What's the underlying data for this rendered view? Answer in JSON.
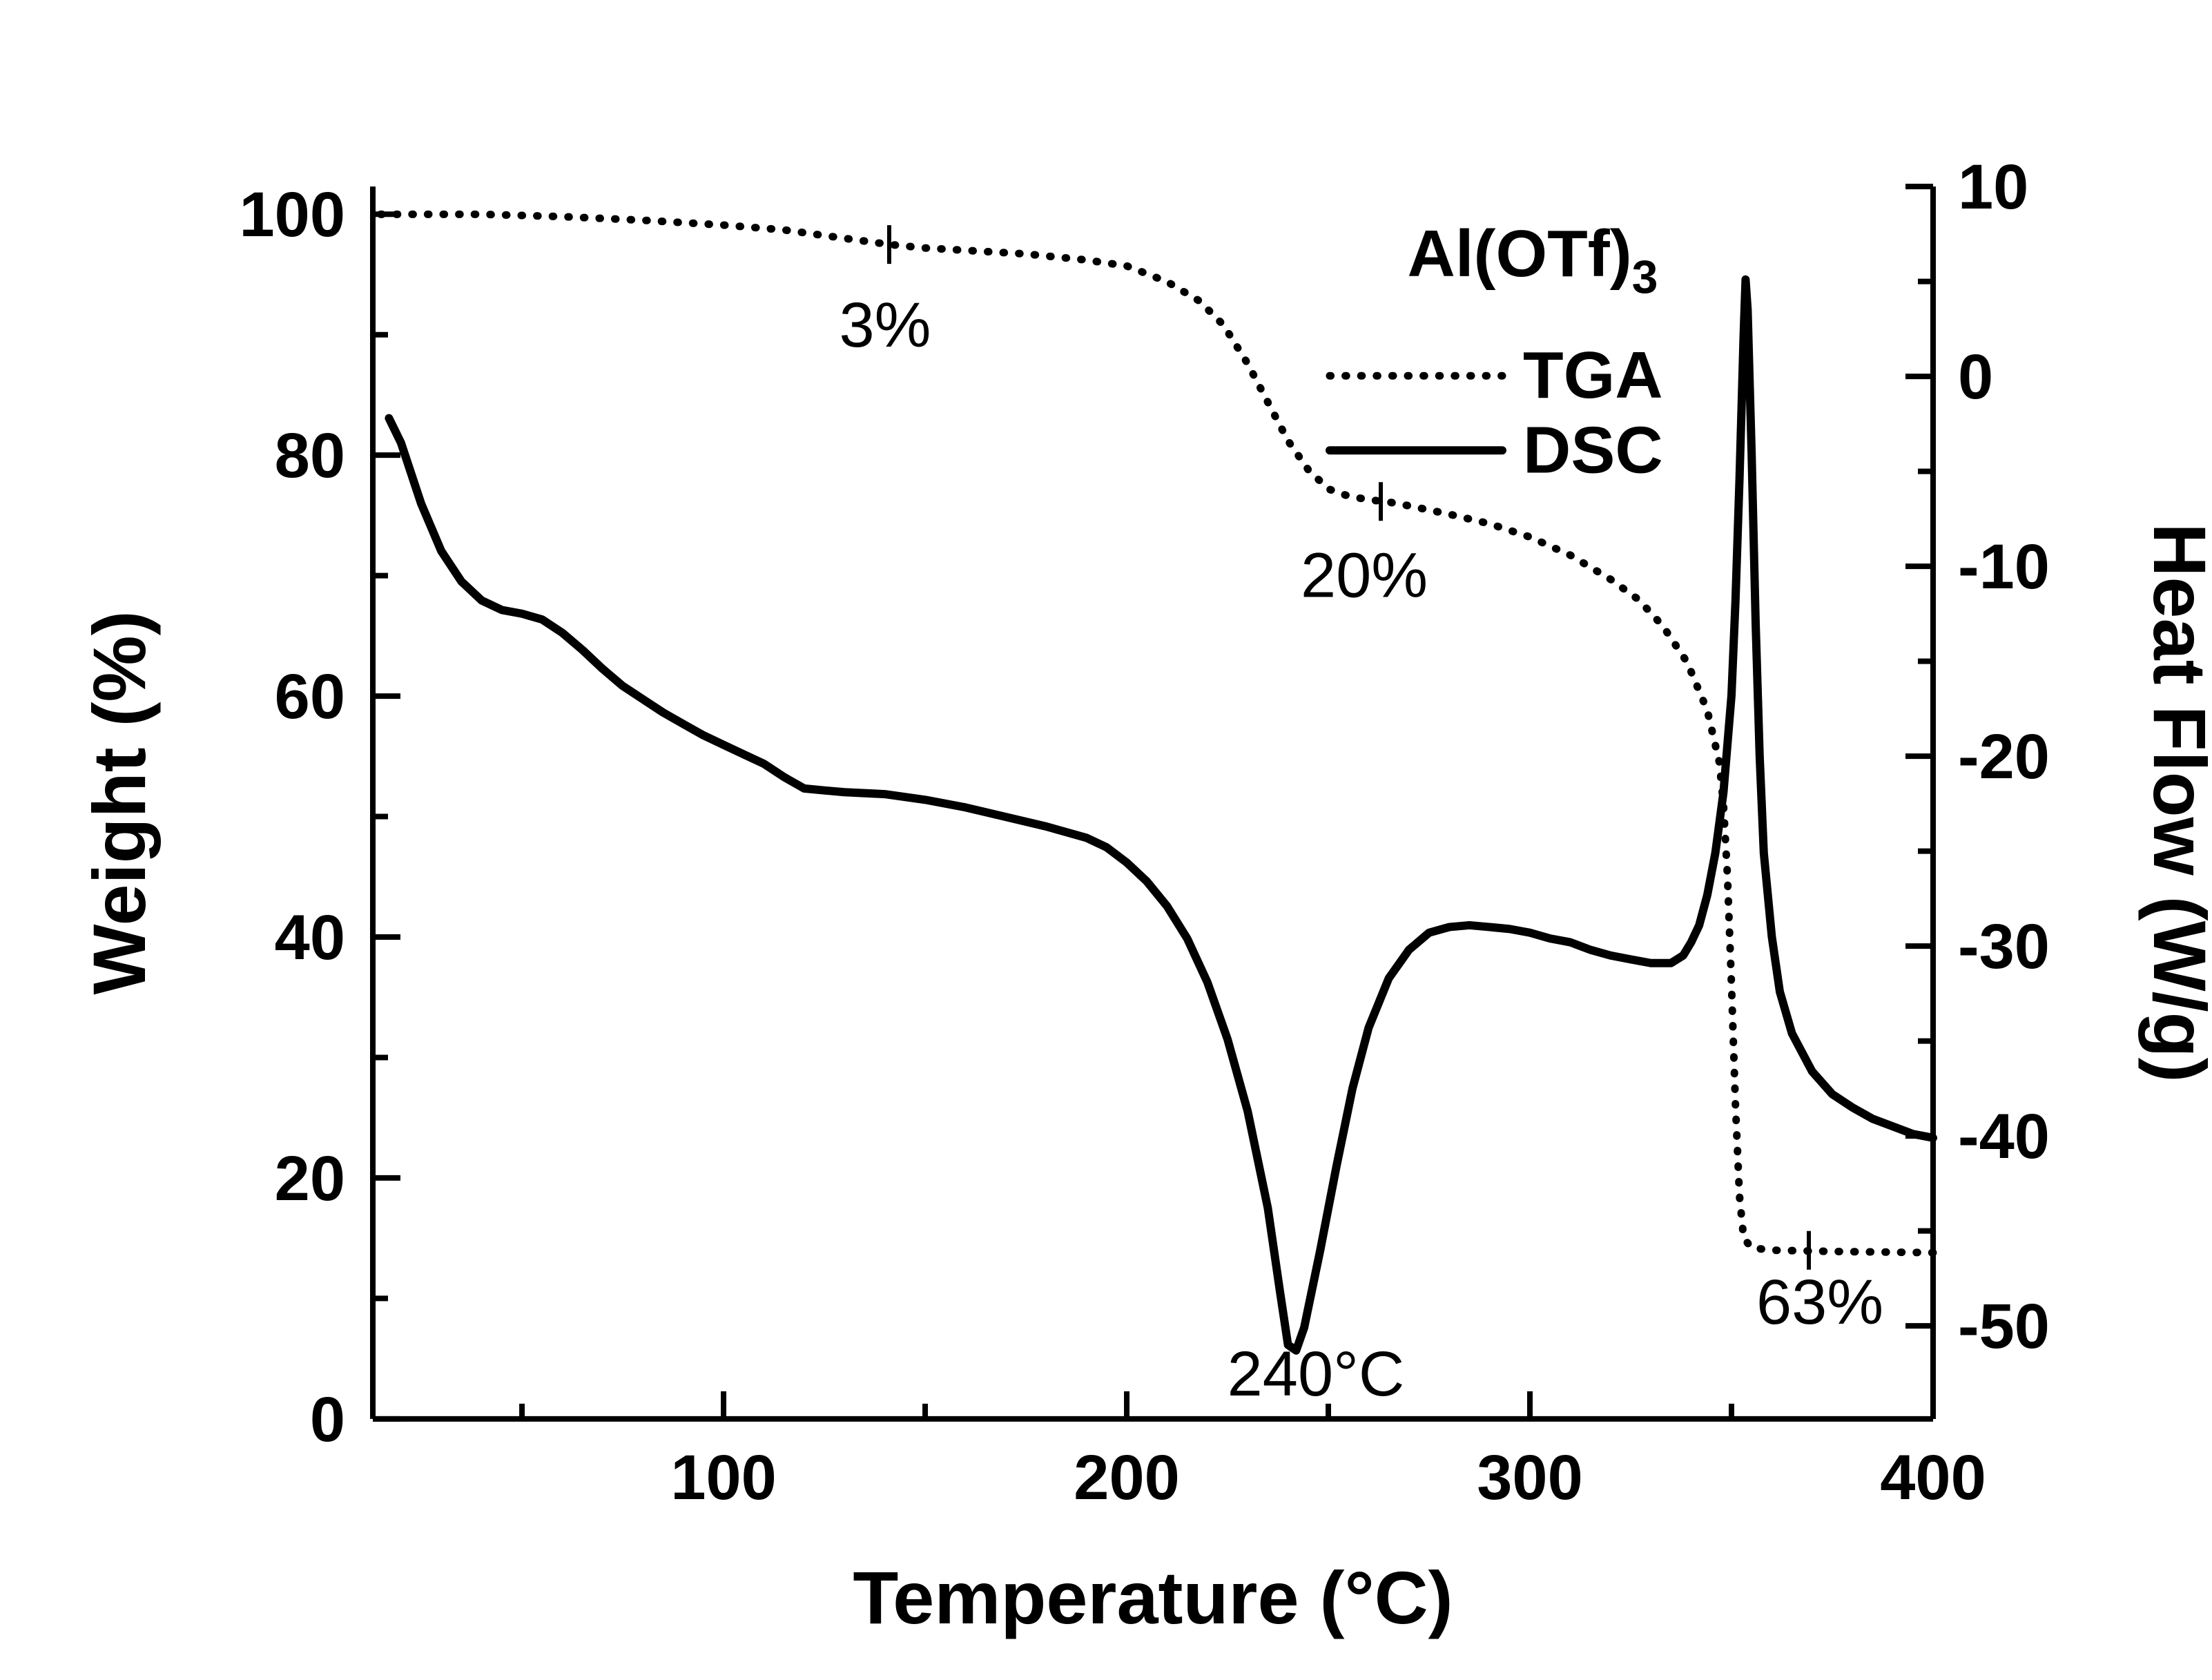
{
  "legend": {
    "title_main": "Al(OTf)",
    "title_sub": "3",
    "position": "top-right",
    "entries": [
      {
        "label": "TGA",
        "style": "dotted"
      },
      {
        "label": "DSC",
        "style": "solid"
      }
    ]
  },
  "annotations": [
    {
      "text": "3%",
      "x_c": 141,
      "on_curve": "TGA"
    },
    {
      "text": "20%",
      "x_c": 263,
      "on_curve": "TGA"
    },
    {
      "text": "63%",
      "x_c": 369,
      "on_curve": "TGA"
    },
    {
      "text": "240°C",
      "x_c": 240,
      "on_curve": "DSC"
    }
  ],
  "chart_data": {
    "type": "line",
    "title": "Al(OTf)3",
    "xlabel": "Temperature (°C)",
    "ylabel_left": "Weight (%)",
    "ylabel_right": "Heat Flow (W/g)",
    "grid": false,
    "x_range": [
      13,
      400
    ],
    "weight_axis_top": 102.3,
    "hf_axis_top": 10,
    "hf_axis_bottom": -54.9,
    "x_ticks_major": [
      100,
      200,
      300,
      400
    ],
    "x_ticks_minor": [
      50,
      150,
      250,
      350
    ],
    "left_ticks_major": [
      0,
      20,
      40,
      60,
      80,
      100
    ],
    "left_ticks_minor": [
      10,
      30,
      50,
      70,
      90
    ],
    "right_ticks_major": [
      10,
      0,
      -10,
      -20,
      -30,
      -40,
      -50
    ],
    "right_ticks_minor": [
      5,
      -5,
      -15,
      -25,
      -35,
      -45
    ],
    "series": [
      {
        "name": "TGA",
        "axis": "weight",
        "style": "dotted",
        "points": [
          [
            15,
            100
          ],
          [
            40,
            100
          ],
          [
            60,
            99.8
          ],
          [
            80,
            99.5
          ],
          [
            100,
            99.1
          ],
          [
            115,
            98.7
          ],
          [
            130,
            98
          ],
          [
            141,
            97.5
          ],
          [
            150,
            97.2
          ],
          [
            160,
            97
          ],
          [
            175,
            96.7
          ],
          [
            190,
            96.2
          ],
          [
            200,
            95.7
          ],
          [
            210,
            94.4
          ],
          [
            218,
            92.8
          ],
          [
            224,
            90.8
          ],
          [
            230,
            87.6
          ],
          [
            235,
            84.4
          ],
          [
            240,
            81.2
          ],
          [
            245,
            78.8
          ],
          [
            250,
            77.2
          ],
          [
            255,
            76.6
          ],
          [
            260,
            76.3
          ],
          [
            265,
            76.1
          ],
          [
            270,
            75.8
          ],
          [
            280,
            75.1
          ],
          [
            290,
            74.3
          ],
          [
            300,
            73.2
          ],
          [
            310,
            71.7
          ],
          [
            320,
            69.7
          ],
          [
            327,
            68
          ],
          [
            333,
            65.8
          ],
          [
            339,
            62.8
          ],
          [
            344,
            58.8
          ],
          [
            347,
            54.5
          ],
          [
            348,
            51
          ],
          [
            349,
            45
          ],
          [
            350,
            36
          ],
          [
            351,
            26
          ],
          [
            352,
            18.5
          ],
          [
            353,
            15
          ],
          [
            355,
            14.2
          ],
          [
            360,
            14
          ],
          [
            375,
            13.9
          ],
          [
            400,
            13.8
          ]
        ]
      },
      {
        "name": "DSC",
        "axis": "hf",
        "style": "solid",
        "points": [
          [
            17,
            -2.2
          ],
          [
            20,
            -3.5
          ],
          [
            25,
            -6.7
          ],
          [
            30,
            -9.2
          ],
          [
            35,
            -10.8
          ],
          [
            40,
            -11.8
          ],
          [
            45,
            -12.3
          ],
          [
            50,
            -12.5
          ],
          [
            55,
            -12.8
          ],
          [
            60,
            -13.5
          ],
          [
            65,
            -14.4
          ],
          [
            70,
            -15.4
          ],
          [
            75,
            -16.3
          ],
          [
            80,
            -17
          ],
          [
            85,
            -17.7
          ],
          [
            90,
            -18.3
          ],
          [
            95,
            -18.9
          ],
          [
            100,
            -19.4
          ],
          [
            105,
            -19.9
          ],
          [
            110,
            -20.4
          ],
          [
            115,
            -21.1
          ],
          [
            120,
            -21.7
          ],
          [
            125,
            -21.8
          ],
          [
            130,
            -21.9
          ],
          [
            140,
            -22
          ],
          [
            150,
            -22.3
          ],
          [
            160,
            -22.7
          ],
          [
            170,
            -23.2
          ],
          [
            180,
            -23.7
          ],
          [
            190,
            -24.3
          ],
          [
            195,
            -24.8
          ],
          [
            200,
            -25.6
          ],
          [
            205,
            -26.6
          ],
          [
            210,
            -27.9
          ],
          [
            215,
            -29.6
          ],
          [
            220,
            -31.9
          ],
          [
            225,
            -34.9
          ],
          [
            230,
            -38.7
          ],
          [
            235,
            -43.8
          ],
          [
            238,
            -48.2
          ],
          [
            240,
            -51
          ],
          [
            242,
            -51.3
          ],
          [
            244,
            -50.1
          ],
          [
            248,
            -46
          ],
          [
            252,
            -41.6
          ],
          [
            256,
            -37.5
          ],
          [
            260,
            -34.3
          ],
          [
            265,
            -31.7
          ],
          [
            270,
            -30.2
          ],
          [
            275,
            -29.3
          ],
          [
            280,
            -29
          ],
          [
            285,
            -28.9
          ],
          [
            290,
            -29
          ],
          [
            295,
            -29.1
          ],
          [
            300,
            -29.3
          ],
          [
            305,
            -29.6
          ],
          [
            310,
            -29.8
          ],
          [
            315,
            -30.2
          ],
          [
            320,
            -30.5
          ],
          [
            325,
            -30.7
          ],
          [
            330,
            -30.9
          ],
          [
            335,
            -30.9
          ],
          [
            338,
            -30.5
          ],
          [
            340,
            -29.8
          ],
          [
            342,
            -28.9
          ],
          [
            344,
            -27.3
          ],
          [
            346,
            -25.1
          ],
          [
            348,
            -21.9
          ],
          [
            350,
            -16.8
          ],
          [
            351,
            -11.8
          ],
          [
            352,
            -5.4
          ],
          [
            353,
            2.2
          ],
          [
            353.5,
            5.1
          ],
          [
            354,
            3.5
          ],
          [
            355,
            -4.1
          ],
          [
            356,
            -13
          ],
          [
            357,
            -20
          ],
          [
            358,
            -25.1
          ],
          [
            360,
            -29.5
          ],
          [
            362,
            -32.4
          ],
          [
            365,
            -34.6
          ],
          [
            370,
            -36.6
          ],
          [
            375,
            -37.8
          ],
          [
            380,
            -38.5
          ],
          [
            385,
            -39.1
          ],
          [
            390,
            -39.5
          ],
          [
            395,
            -39.9
          ],
          [
            400,
            -40.1
          ]
        ]
      }
    ]
  }
}
